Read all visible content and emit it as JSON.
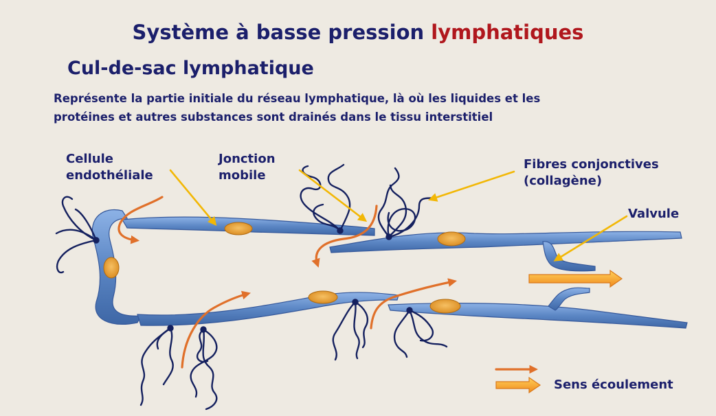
{
  "slide": {
    "title_main": "Système à basse pression",
    "title_accent": "lymphatiques",
    "subtitle": "Cul-de-sac lymphatique",
    "description_line1": "Représente la partie initiale du réseau lymphatique, là où les liquides et les",
    "description_line2": "protéines et autres substances sont drainés dans le tissu interstitiel"
  },
  "labels": {
    "endothelial_line1": "Cellule",
    "endothelial_line2": "endothéliale",
    "junction_line1": "Jonction",
    "junction_line2": "mobile",
    "fibers_line1": "Fibres conjonctives",
    "fibers_line2": "(collagène)",
    "valve": "Valvule",
    "flow_legend": "Sens écoulement"
  },
  "colors": {
    "background": "#EEEAE2",
    "title": "#1B1F6B",
    "accent": "#B0171D",
    "vessel": "#5B86C4",
    "nucleus": "#E9A13A",
    "fiber": "#14205E",
    "pointer": "#F2B705",
    "flow_arrow": "#E0702A"
  }
}
